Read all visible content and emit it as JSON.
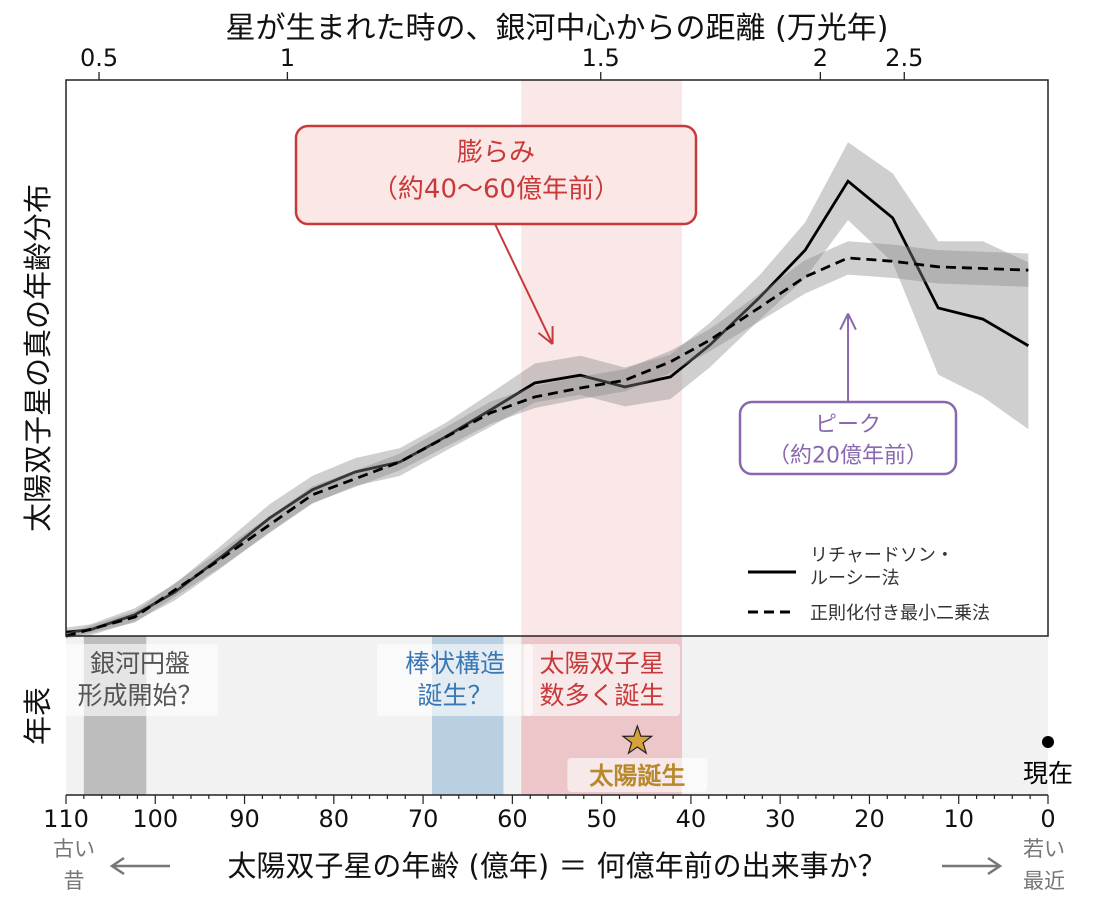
{
  "chart_data": {
    "type": "line",
    "top_axis": {
      "label": "星が生まれた時の、銀河中心からの距離 (万光年)",
      "ticks": [
        {
          "label": "0.5",
          "age": 106.3
        },
        {
          "label": "1",
          "age": 85.2
        },
        {
          "label": "1.5",
          "age": 50.1
        },
        {
          "label": "2",
          "age": 25.5
        },
        {
          "label": "2.5",
          "age": 16.1
        }
      ]
    },
    "ylabel": "太陽双子星の真の年齢分布",
    "timeline_label": "年表",
    "x_axis": {
      "label": "太陽双子星の年齢 (億年) ＝ 何億年前の出来事か？",
      "xlim": [
        110,
        0
      ],
      "ticks": [
        110,
        100,
        90,
        80,
        70,
        60,
        50,
        40,
        30,
        20,
        10,
        0
      ],
      "left_note": [
        "古い",
        "昔"
      ],
      "right_note": [
        "若い",
        "最近"
      ]
    },
    "ylim": [
      0,
      100
    ],
    "series": [
      {
        "name": "リチャードソン・ルーシー法",
        "style": "solid",
        "x": [
          110,
          107.3,
          102.3,
          97.8,
          92.8,
          87.2,
          82.4,
          77.6,
          72.6,
          67.5,
          62.5,
          57.5,
          52.4,
          47.4,
          42.3,
          37.9,
          32.3,
          27.2,
          22.4,
          17.4,
          12.3,
          7.3,
          2.2
        ],
        "y": [
          0.7,
          1.1,
          3.8,
          7.9,
          14.0,
          21.2,
          26.3,
          29.5,
          31.3,
          35.8,
          40.6,
          45.5,
          46.9,
          44.8,
          46.6,
          52.3,
          60.9,
          69.4,
          81.8,
          75.2,
          59.0,
          57.0,
          52.2
        ],
        "err": [
          0.8,
          1,
          1.2,
          1.5,
          2,
          2.5,
          2.5,
          2.5,
          2.5,
          2.5,
          3,
          3.5,
          3.5,
          3.5,
          4,
          4,
          4,
          5,
          7,
          8,
          12,
          14,
          15
        ]
      },
      {
        "name": "正則化付き最小二乗法",
        "style": "dashed",
        "x": [
          110,
          102.3,
          92.8,
          82.4,
          72.6,
          62.5,
          57.5,
          52.4,
          47.4,
          42.3,
          37.9,
          32.3,
          27.2,
          22.4,
          17.4,
          12.3,
          2.2
        ],
        "y": [
          0,
          3.4,
          13.7,
          25.4,
          31.3,
          40.1,
          43.0,
          44.6,
          46.0,
          49.3,
          53.2,
          59.1,
          64.6,
          68.0,
          67.4,
          66.4,
          65.8
        ],
        "err": [
          0.5,
          1,
          1.5,
          1.5,
          1.5,
          2,
          2,
          2,
          2,
          2,
          2,
          2.5,
          3,
          3,
          3,
          3,
          3
        ]
      }
    ],
    "highlight_band": {
      "from": 59,
      "to": 41,
      "color": "#f6d5d5"
    },
    "annotations": [
      {
        "lines": [
          "膨らみ",
          "（約40〜60億年前）"
        ],
        "color": "#c83a3a",
        "arrow_to_age": 55.5,
        "arrow_to_y": 52.5
      },
      {
        "lines": [
          "ピーク",
          "（約20億年前）"
        ],
        "color": "#8a68b0",
        "arrow_to_age": 22.4,
        "arrow_to_y": 58
      }
    ],
    "legend": {
      "placement": "lower-right",
      "entries": [
        "リチャードソン・ルーシー法",
        "正則化付き最小二乗法"
      ],
      "entry1_lines": [
        "リチャードソン・",
        "ルーシー法"
      ]
    },
    "timeline_events": [
      {
        "lines": [
          "銀河円盤",
          "形成開始？"
        ],
        "from": 108,
        "to": 101,
        "color": "#555555",
        "band": "#bdbdbd"
      },
      {
        "lines": [
          "棒状構造",
          "誕生？"
        ],
        "from": 69,
        "to": 61,
        "color": "#3a78b5",
        "band": "#b9cfe2"
      },
      {
        "lines": [
          "太陽双子星",
          "数多く誕生"
        ],
        "from": 59,
        "to": 41,
        "color": "#c83a3a",
        "band": "#ecc6c8"
      }
    ],
    "sun_birth": {
      "age": 46,
      "label": "太陽誕生",
      "color": "#d6a33a",
      "text_color": "#b8892c"
    },
    "present": {
      "age": 0,
      "label": "現在"
    }
  }
}
